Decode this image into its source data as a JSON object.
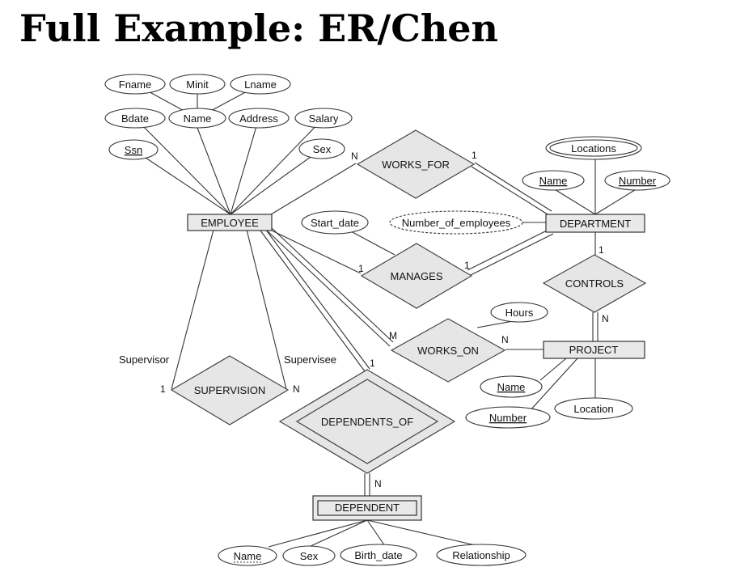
{
  "title": "Full Example: ER/Chen",
  "entities": {
    "employee": "EMPLOYEE",
    "department": "DEPARTMENT",
    "project": "PROJECT",
    "dependent": "DEPENDENT"
  },
  "relationships": {
    "works_for": "WORKS_FOR",
    "manages": "MANAGES",
    "controls": "CONTROLS",
    "works_on": "WORKS_ON",
    "supervision": "SUPERVISION",
    "dependents_of": "DEPENDENTS_OF"
  },
  "attributes": {
    "fname": "Fname",
    "minit": "Minit",
    "lname": "Lname",
    "bdate": "Bdate",
    "name": "Name",
    "address": "Address",
    "salary": "Salary",
    "ssn": "Ssn",
    "sex": "Sex",
    "locations": "Locations",
    "dept_name": "Name",
    "dept_number": "Number",
    "number_of_employees": "Number_of_employees",
    "start_date": "Start_date",
    "hours": "Hours",
    "proj_name": "Name",
    "proj_number": "Number",
    "location": "Location",
    "dep_name": "Name",
    "dep_sex": "Sex",
    "birth_date": "Birth_date",
    "relationship": "Relationship"
  },
  "roles": {
    "supervisor": "Supervisor",
    "supervisee": "Supervisee"
  },
  "cardinalities": {
    "works_for_employee": "N",
    "works_for_department": "1",
    "manages_employee": "1",
    "manages_department": "1",
    "controls_department": "1",
    "controls_project": "N",
    "works_on_employee": "M",
    "works_on_project": "N",
    "supervision_supervisor": "1",
    "supervision_supervisee": "N",
    "dependents_of_employee": "1",
    "dependents_of_dependent": "N"
  }
}
